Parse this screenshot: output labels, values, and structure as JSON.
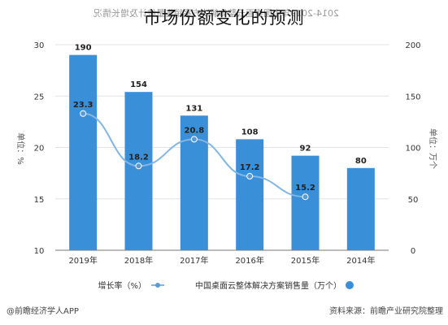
{
  "overlay_title": "市场份额变化的预测",
  "colors": {
    "bar": "#3a8fd9",
    "line": "#82b6e3",
    "marker": "#5b9ad4",
    "text": "#333333",
    "axis": "#777777",
    "grid": "#e3e3e3"
  },
  "chart_data": {
    "type": "bar",
    "title": "2014-2019年中国桌面云整体解决方案销售量统计及增长情况",
    "categories": [
      "2019年",
      "2018年",
      "2017年",
      "2016年",
      "2015年",
      "2014年"
    ],
    "left_axis": {
      "label": "单位：%",
      "ticks": [
        10,
        15,
        20,
        25,
        30
      ],
      "ylim": [
        10,
        30
      ]
    },
    "right_axis": {
      "label": "单位：万个",
      "ticks": [
        0,
        50,
        100,
        150,
        200
      ],
      "ylim": [
        0,
        200
      ]
    },
    "series": [
      {
        "name": "中国桌面云整体解决方案销售量（万个）",
        "type": "bar",
        "axis": "right",
        "values": [
          190,
          154,
          131,
          108,
          92,
          80
        ]
      },
      {
        "name": "增长率（%）",
        "type": "line",
        "axis": "left",
        "values": [
          23.3,
          18.2,
          20.8,
          17.2,
          15.2,
          null
        ]
      }
    ],
    "legend_position": "bottom",
    "source": "资料来源：前瞻产业研究院整理",
    "watermark": "@前瞻经济学人APP"
  }
}
